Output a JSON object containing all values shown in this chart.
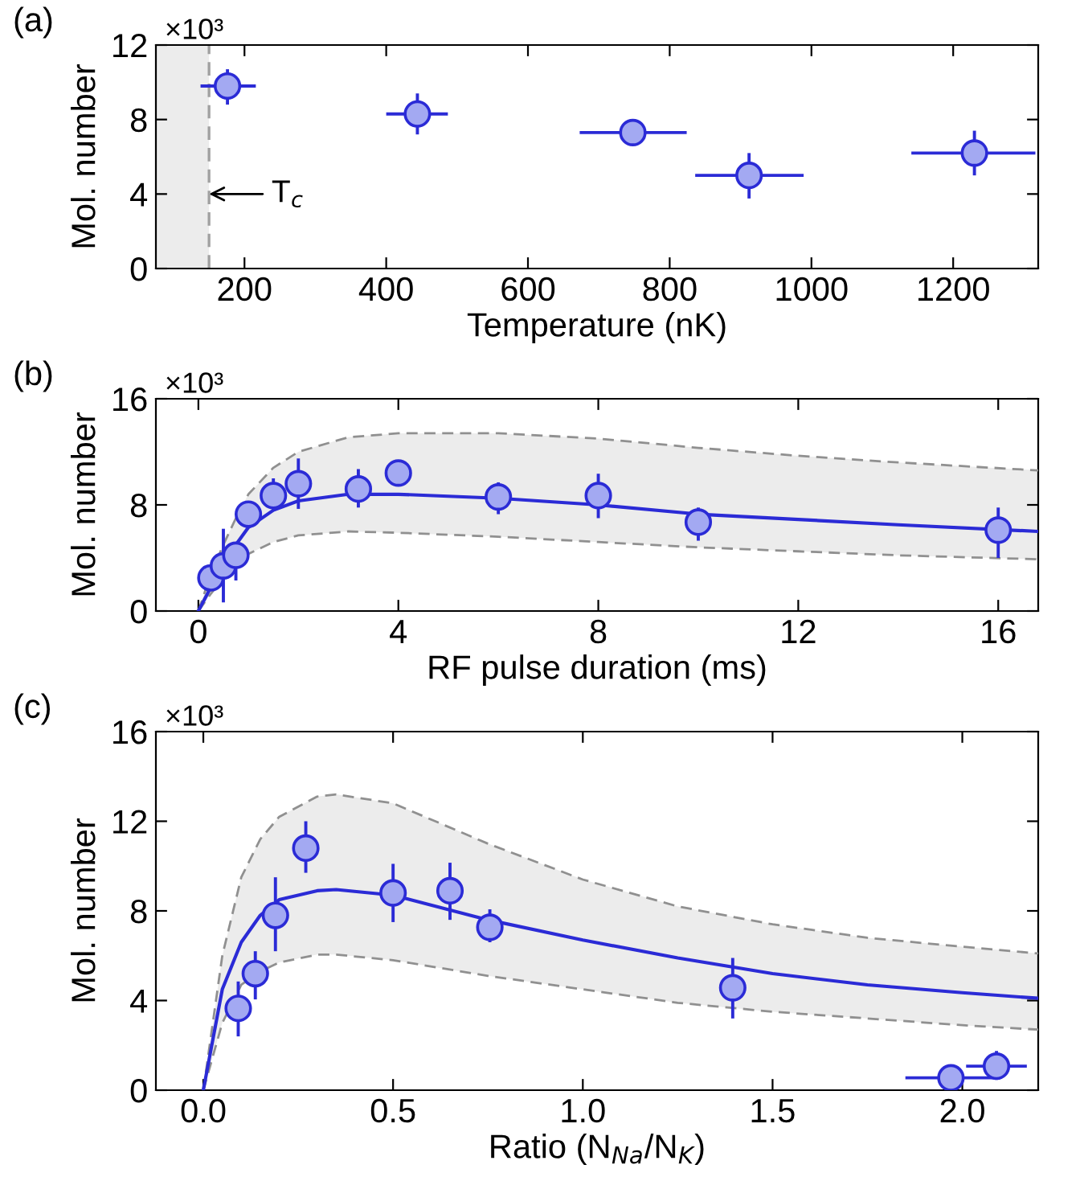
{
  "chart_data": [
    {
      "type": "scatter",
      "xlabel": "Temperature (nK)",
      "ylabel": "Mol. number",
      "xlim": [
        75,
        1320
      ],
      "ylim": [
        0,
        12
      ],
      "xticks": [
        200,
        400,
        600,
        800,
        1000,
        1200
      ],
      "yticks": [
        0,
        4,
        8,
        12
      ],
      "marker": "circle",
      "grid": false,
      "legend": false,
      "annotations": [
        "(a)",
        "×10³",
        {
          "text": "T$_{c}$",
          "x": 150,
          "y": 4
        }
      ],
      "bands": [
        {
          "axis": "x",
          "from": 75,
          "to": 150,
          "color": "#ececec"
        }
      ],
      "ref_lines": [
        {
          "axis": "x",
          "value": 150,
          "color": "#a0a0a0",
          "line_style": "dashed"
        }
      ],
      "series": [
        {
          "color": "#2b2bd6",
          "x": [
            176,
            444,
            748,
            912,
            1230
          ],
          "values": [
            9.8,
            8.3,
            7.3,
            5.0,
            6.2
          ],
          "errors": [
            [
              8.8,
              10.7
            ],
            [
              7.2,
              9.4
            ],
            null,
            [
              3.76,
              6.2
            ],
            [
              5.0,
              7.4
            ]
          ],
          "xerrors": [
            [
              138,
              216
            ],
            [
              400,
              487
            ],
            [
              673,
              824
            ],
            [
              836,
              989
            ],
            [
              1141,
              1316
            ]
          ]
        }
      ]
    },
    {
      "type": "scatter",
      "xlabel": "RF pulse duration (ms)",
      "ylabel": "Mol. number",
      "xlim": [
        -0.85,
        16.8
      ],
      "ylim": [
        0,
        16
      ],
      "xticks": [
        0,
        4,
        8,
        12,
        16
      ],
      "yticks": [
        0,
        8,
        16
      ],
      "marker": "circle",
      "grid": false,
      "legend": false,
      "annotations": [
        "(b)",
        "×10³"
      ],
      "series": [
        {
          "type": "line",
          "color": "#909090",
          "line_style": "dashed",
          "marker": "none",
          "x": [
            0,
            0.25,
            0.5,
            0.75,
            1.0,
            1.5,
            2,
            3,
            4,
            6,
            8,
            10,
            12,
            14,
            16.8
          ],
          "values": [
            0,
            1.3,
            2.5,
            3.5,
            4.3,
            5.2,
            5.7,
            6.0,
            5.9,
            5.6,
            5.2,
            4.8,
            4.5,
            4.2,
            3.9
          ]
        },
        {
          "type": "line",
          "color": "#909090",
          "line_style": "dashed",
          "marker": "none",
          "x": [
            0,
            0.25,
            0.5,
            0.75,
            1.0,
            1.5,
            2,
            3,
            4,
            6,
            8,
            10,
            12,
            14,
            16.8
          ],
          "values": [
            0,
            2.8,
            5.0,
            7.0,
            8.8,
            10.8,
            12.0,
            13.1,
            13.4,
            13.4,
            13.0,
            12.3,
            11.7,
            11.2,
            10.6
          ]
        },
        {
          "type": "line",
          "color": "#2b2bd6",
          "line_style": "solid",
          "marker": "none",
          "x": [
            0,
            0.25,
            0.5,
            0.75,
            1.0,
            1.5,
            2,
            3,
            4,
            6,
            8,
            10,
            12,
            14,
            16.8
          ],
          "values": [
            0,
            1.8,
            3.6,
            5.0,
            6.3,
            7.6,
            8.3,
            8.8,
            8.8,
            8.5,
            8.0,
            7.3,
            6.9,
            6.5,
            6.0
          ],
          "lower": [
            0,
            1.3,
            2.5,
            3.5,
            4.3,
            5.2,
            5.7,
            6.0,
            5.9,
            5.6,
            5.2,
            4.8,
            4.5,
            4.2,
            3.9
          ],
          "upper": [
            0,
            2.8,
            5.0,
            7.0,
            8.8,
            10.8,
            12.0,
            13.1,
            13.4,
            13.4,
            13.0,
            12.3,
            11.7,
            11.2,
            10.6
          ]
        },
        {
          "color": "#2b2bd6",
          "x": [
            0.25,
            0.5,
            0.75,
            1.0,
            1.5,
            2.0,
            3.2,
            4.0,
            6.0,
            8.0,
            10.0,
            16.0
          ],
          "values": [
            2.5,
            3.4,
            4.2,
            7.3,
            8.7,
            9.6,
            9.2,
            10.4,
            8.6,
            8.7,
            6.7,
            6.1
          ],
          "errors": [
            null,
            [
              0.65,
              6.2
            ],
            [
              2.3,
              5.2
            ],
            null,
            [
              7.6,
              10.0
            ],
            [
              7.7,
              11.5
            ],
            [
              7.8,
              10.7
            ],
            [
              9.5,
              11.3
            ],
            [
              7.3,
              9.7
            ],
            [
              7.0,
              10.35
            ],
            [
              5.3,
              7.8
            ],
            [
              4.0,
              7.8
            ]
          ]
        }
      ]
    },
    {
      "type": "scatter",
      "xlabel": "Ratio (N$_{Na}$/N$_{K}$)",
      "ylabel": "Mol. number",
      "xlim": [
        -0.125,
        2.2
      ],
      "ylim": [
        0,
        16
      ],
      "xticks": [
        {
          "value": 0,
          "label": "0.0"
        },
        0.5,
        {
          "value": 1,
          "label": "1.0"
        },
        1.5,
        {
          "value": 2,
          "label": "2.0"
        }
      ],
      "yticks": [
        0,
        4,
        8,
        12,
        16
      ],
      "marker": "circle",
      "grid": false,
      "legend": false,
      "annotations": [
        "(c)",
        "×10³"
      ],
      "series": [
        {
          "type": "line",
          "color": "#909090",
          "line_style": "dashed",
          "marker": "none",
          "x": [
            0,
            0.05,
            0.1,
            0.15,
            0.2,
            0.3,
            0.35,
            0.5,
            0.75,
            1.0,
            1.25,
            1.5,
            1.75,
            2.0,
            2.2
          ],
          "values": [
            0,
            3.0,
            4.7,
            5.3,
            5.7,
            6.05,
            6.05,
            5.8,
            5.1,
            4.5,
            3.9,
            3.5,
            3.2,
            2.9,
            2.7
          ]
        },
        {
          "type": "line",
          "color": "#909090",
          "line_style": "dashed",
          "marker": "none",
          "x": [
            0,
            0.05,
            0.1,
            0.15,
            0.2,
            0.3,
            0.35,
            0.5,
            0.75,
            1.0,
            1.25,
            1.5,
            1.75,
            2.0,
            2.2
          ],
          "values": [
            0,
            6.0,
            9.5,
            11.2,
            12.2,
            13.1,
            13.2,
            12.8,
            11.0,
            9.4,
            8.2,
            7.4,
            6.8,
            6.4,
            6.1
          ]
        },
        {
          "type": "line",
          "color": "#2b2bd6",
          "line_style": "solid",
          "marker": "none",
          "x": [
            0,
            0.05,
            0.1,
            0.15,
            0.2,
            0.3,
            0.35,
            0.5,
            0.75,
            1.0,
            1.25,
            1.5,
            1.75,
            2.0,
            2.2
          ],
          "values": [
            0,
            4.5,
            6.6,
            7.8,
            8.5,
            8.9,
            8.95,
            8.7,
            7.6,
            6.7,
            5.9,
            5.2,
            4.7,
            4.35,
            4.1
          ],
          "lower": [
            0,
            3.0,
            4.7,
            5.3,
            5.7,
            6.05,
            6.05,
            5.8,
            5.1,
            4.5,
            3.9,
            3.5,
            3.2,
            2.9,
            2.7
          ],
          "upper": [
            0,
            6.0,
            9.5,
            11.2,
            12.2,
            13.1,
            13.2,
            12.8,
            11.0,
            9.4,
            8.2,
            7.4,
            6.8,
            6.4,
            6.1
          ]
        },
        {
          "color": "#2b2bd6",
          "x": [
            0.092,
            0.137,
            0.19,
            0.27,
            0.5,
            0.65,
            0.755,
            1.395,
            1.97,
            2.09
          ],
          "values": [
            3.65,
            5.2,
            7.8,
            10.8,
            8.8,
            8.9,
            7.27,
            4.57,
            0.55,
            1.07
          ],
          "errors": [
            [
              2.4,
              4.85
            ],
            [
              4.05,
              6.2
            ],
            [
              6.2,
              9.5
            ],
            [
              9.7,
              12.0
            ],
            [
              7.5,
              10.1
            ],
            [
              7.6,
              10.15
            ],
            [
              6.6,
              8.07
            ],
            [
              3.2,
              5.9
            ],
            [
              0.15,
              0.9
            ],
            [
              0.46,
              1.75
            ]
          ],
          "xerrors": [
            null,
            null,
            null,
            null,
            null,
            null,
            null,
            null,
            [
              1.85,
              2.1
            ],
            [
              2.01,
              2.17
            ]
          ]
        }
      ]
    }
  ]
}
